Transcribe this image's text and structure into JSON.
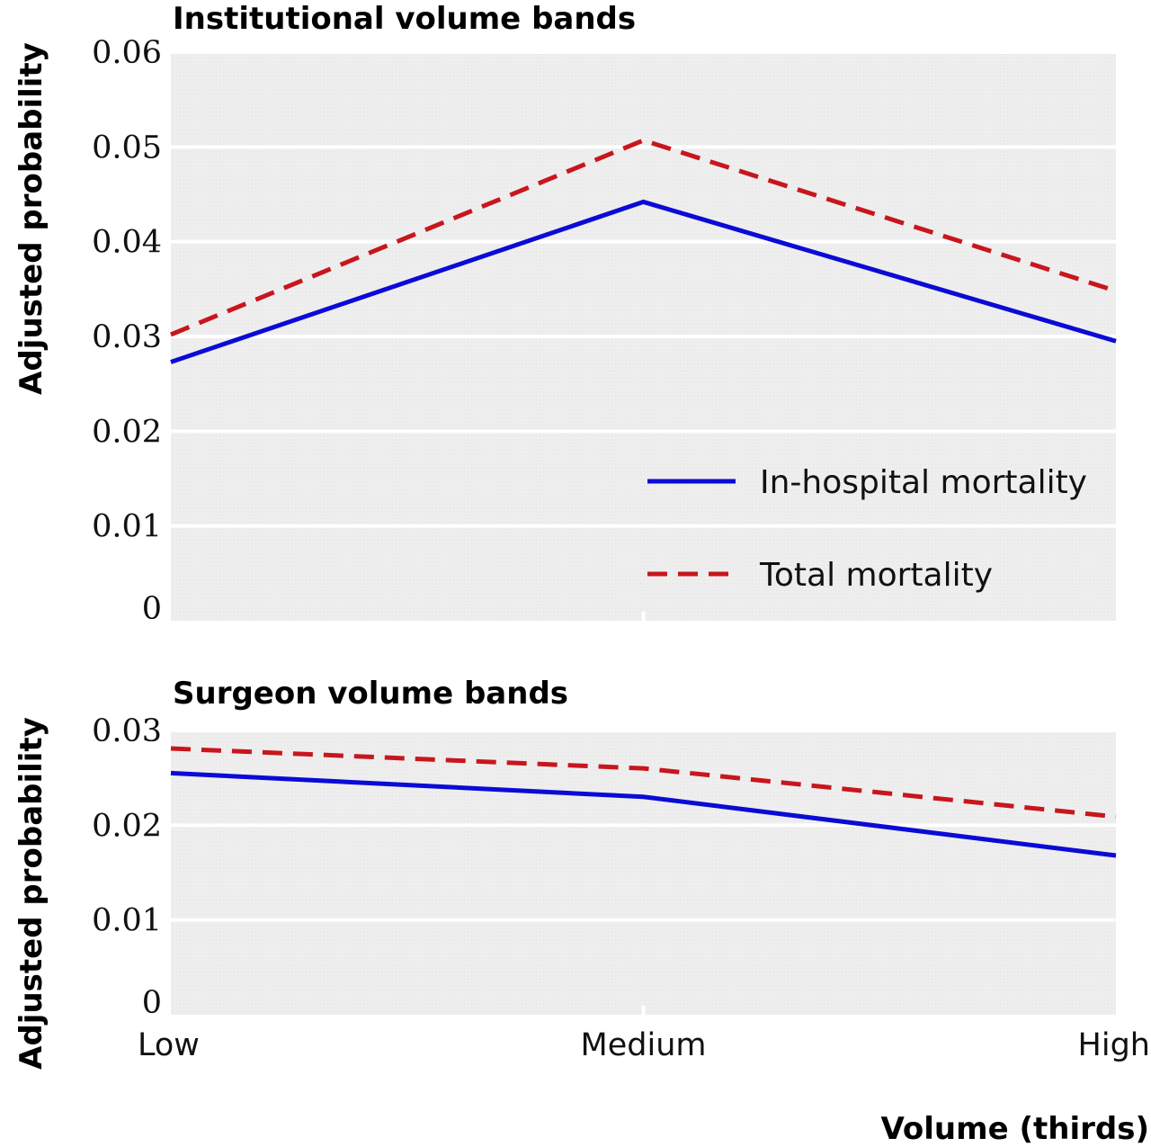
{
  "x_axis_label": "Volume (thirds)",
  "chart_data": [
    {
      "type": "line",
      "title": "Institutional volume bands",
      "ylabel": "Adjusted probability",
      "xlabel": "Volume (thirds)",
      "categories": [
        "Low",
        "Medium",
        "High"
      ],
      "yticks": [
        "0",
        "0.01",
        "0.02",
        "0.03",
        "0.04",
        "0.05",
        "0.06"
      ],
      "ylim": [
        0,
        0.06
      ],
      "grid": true,
      "legend": "bottom-right",
      "series": [
        {
          "name": "In-hospital mortality",
          "values": [
            0.0273,
            0.0442,
            0.0295
          ],
          "color": "#0b0bd6",
          "style": "solid"
        },
        {
          "name": "Total mortality",
          "values": [
            0.0302,
            0.0507,
            0.0348
          ],
          "color": "#c8161d",
          "style": "dashed"
        }
      ]
    },
    {
      "type": "line",
      "title": "Surgeon volume bands",
      "ylabel": "Adjusted probability",
      "xlabel": "Volume (thirds)",
      "categories": [
        "Low",
        "Medium",
        "High"
      ],
      "yticks": [
        "0",
        "0.01",
        "0.02",
        "0.03"
      ],
      "ylim": [
        0,
        0.03
      ],
      "grid": true,
      "series": [
        {
          "name": "In-hospital mortality",
          "values": [
            0.0255,
            0.023,
            0.0168
          ],
          "color": "#0b0bd6",
          "style": "solid"
        },
        {
          "name": "Total mortality",
          "values": [
            0.0281,
            0.026,
            0.0209
          ],
          "color": "#c8161d",
          "style": "dashed"
        }
      ]
    }
  ]
}
